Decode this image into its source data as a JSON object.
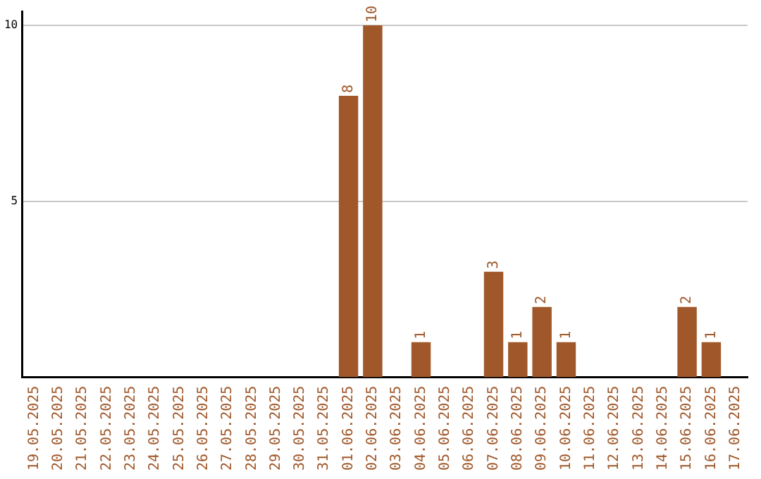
{
  "chart_data": {
    "type": "bar",
    "categories": [
      "19.05.2025",
      "20.05.2025",
      "21.05.2025",
      "22.05.2025",
      "23.05.2025",
      "24.05.2025",
      "25.05.2025",
      "26.05.2025",
      "27.05.2025",
      "28.05.2025",
      "29.05.2025",
      "30.05.2025",
      "31.05.2025",
      "01.06.2025",
      "02.06.2025",
      "03.06.2025",
      "04.06.2025",
      "05.06.2025",
      "06.06.2025",
      "07.06.2025",
      "08.06.2025",
      "09.06.2025",
      "10.06.2025",
      "11.06.2025",
      "12.06.2025",
      "13.06.2025",
      "14.06.2025",
      "15.06.2025",
      "16.06.2025",
      "17.06.2025"
    ],
    "values": [
      0,
      0,
      0,
      0,
      0,
      0,
      0,
      0,
      0,
      0,
      0,
      0,
      0,
      8,
      10,
      0,
      1,
      0,
      0,
      3,
      1,
      2,
      1,
      0,
      0,
      0,
      0,
      2,
      1,
      0
    ],
    "value_labels": [
      null,
      null,
      null,
      null,
      null,
      null,
      null,
      null,
      null,
      null,
      null,
      null,
      null,
      "8",
      "10",
      null,
      "1",
      null,
      null,
      "3",
      "1",
      "2",
      "1",
      null,
      null,
      null,
      null,
      "2",
      "1",
      null
    ],
    "color": "#a0582a",
    "ylim": [
      0,
      10.4
    ],
    "yticks": [
      5,
      10
    ],
    "grid": "y"
  }
}
